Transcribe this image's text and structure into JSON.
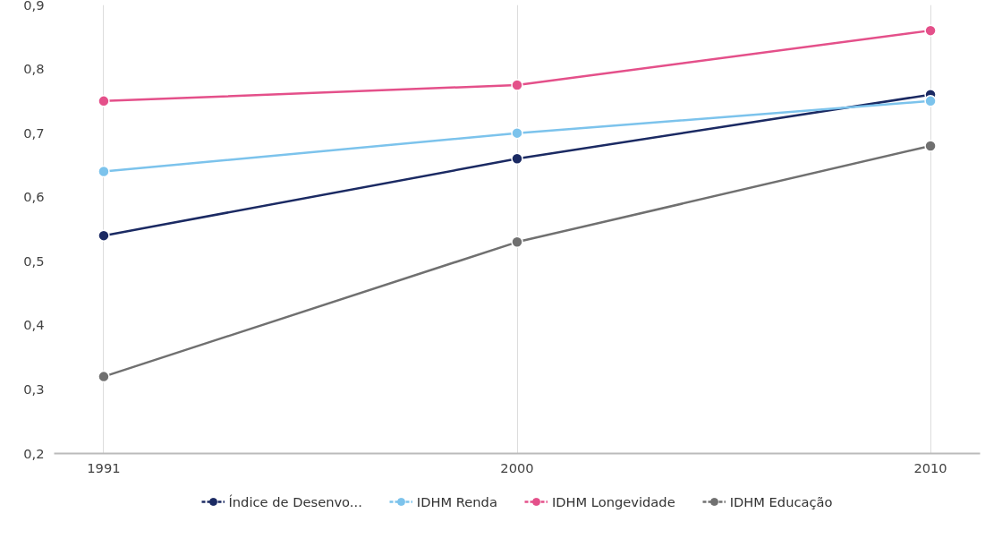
{
  "chart_data": {
    "type": "line",
    "categories": [
      "1991",
      "2000",
      "2010"
    ],
    "series": [
      {
        "name": "Índice de Desenvo...",
        "color": "#1b2a63",
        "values": [
          0.54,
          0.66,
          0.76
        ]
      },
      {
        "name": "IDHM Renda",
        "color": "#7cc3ec",
        "values": [
          0.64,
          0.7,
          0.75
        ]
      },
      {
        "name": "IDHM Longevidade",
        "color": "#e4508a",
        "values": [
          0.75,
          0.775,
          0.86
        ]
      },
      {
        "name": "IDHM Educação",
        "color": "#707070",
        "values": [
          0.32,
          0.53,
          0.68
        ]
      }
    ],
    "ylim": [
      0.2,
      0.9
    ],
    "yticks": [
      {
        "value": 0.2,
        "label": "0,2"
      },
      {
        "value": 0.3,
        "label": "0,3"
      },
      {
        "value": 0.4,
        "label": "0,4"
      },
      {
        "value": 0.5,
        "label": "0,5"
      },
      {
        "value": 0.6,
        "label": "0,6"
      },
      {
        "value": 0.7,
        "label": "0,7"
      },
      {
        "value": 0.8,
        "label": "0,8"
      },
      {
        "value": 0.9,
        "label": "0,9"
      }
    ],
    "grid": "x",
    "legend": "bottom",
    "marker": "circle",
    "line_style": "solid"
  }
}
